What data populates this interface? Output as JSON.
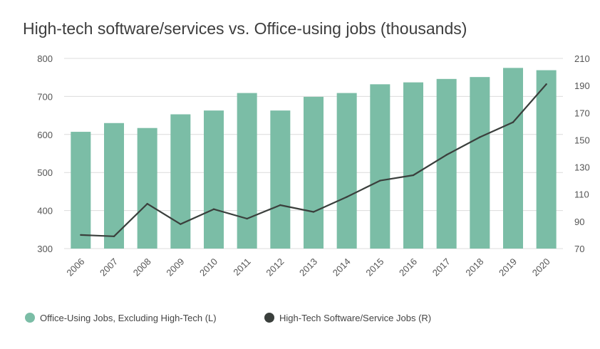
{
  "chart_data": {
    "type": "bar",
    "title": "High-tech software/services vs. Office-using jobs (thousands)",
    "categories": [
      "2006",
      "2007",
      "2008",
      "2009",
      "2010",
      "2011",
      "2012",
      "2013",
      "2014",
      "2015",
      "2016",
      "2017",
      "2018",
      "2019",
      "2020"
    ],
    "series": [
      {
        "name": "Office-Using Jobs, Excluding High-Tech (L)",
        "type": "bar",
        "axis": "left",
        "color": "#7bbda6",
        "values": [
          607,
          630,
          617,
          653,
          663,
          709,
          663,
          699,
          709,
          732,
          737,
          746,
          751,
          775,
          769
        ]
      },
      {
        "name": "High-Tech Software/Service Jobs (R)",
        "type": "line",
        "axis": "right",
        "color": "#3a3f3c",
        "values": [
          80,
          79,
          103,
          88,
          99,
          92,
          102,
          97,
          108,
          120,
          124,
          139,
          152,
          163,
          191
        ]
      }
    ],
    "y_left": {
      "min": 300,
      "max": 800,
      "ticks": [
        300,
        400,
        500,
        600,
        700,
        800
      ]
    },
    "y_right": {
      "min": 70,
      "max": 210,
      "ticks": [
        70,
        90,
        110,
        130,
        150,
        170,
        190,
        210
      ]
    },
    "grid": "horizontal",
    "legend_position": "bottom-left"
  }
}
